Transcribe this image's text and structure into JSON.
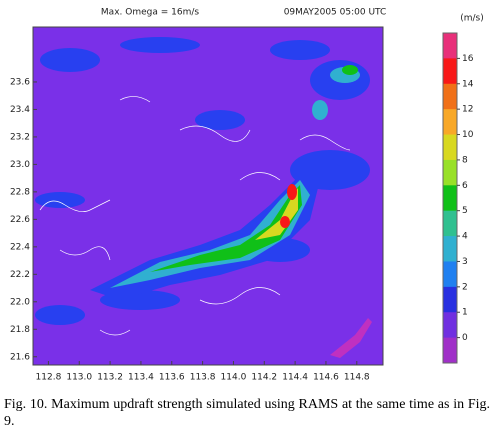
{
  "chart_data": {
    "type": "heatmap",
    "title": "Max. Omega = 16m/s",
    "subtitle": "09MAY2005 05:00 UTC",
    "xlim": [
      112.7,
      114.97
    ],
    "ylim": [
      21.54,
      24.0
    ],
    "xticks": [
      112.8,
      {
        "value": 113,
        "label": "113.0"
      },
      113.2,
      113.4,
      113.6,
      113.8,
      {
        "value": 114,
        "label": "114.0"
      },
      114.2,
      114.4,
      114.6,
      114.8
    ],
    "yticks": [
      21.6,
      21.8,
      {
        "value": 22,
        "label": "22.0"
      },
      22.2,
      22.4,
      22.6,
      22.8,
      {
        "value": 23,
        "label": "23.0"
      },
      23.2,
      23.4,
      23.6
    ],
    "colorbar": {
      "unit_label": "(m/s)",
      "ticks": [
        16,
        14,
        12,
        10,
        8,
        6,
        5,
        4,
        3,
        2,
        1,
        0
      ],
      "colors": [
        "#e8307a",
        "#f81818",
        "#f07018",
        "#f8a828",
        "#d8d820",
        "#98e028",
        "#10c018",
        "#30c090",
        "#30b0d0",
        "#2080f0",
        "#2830e0",
        "#7030e0",
        "#a030c8"
      ]
    }
  },
  "caption": "Fig. 10. Maximum updraft strength simulated using RAMS at the same time as in Fig. 9."
}
